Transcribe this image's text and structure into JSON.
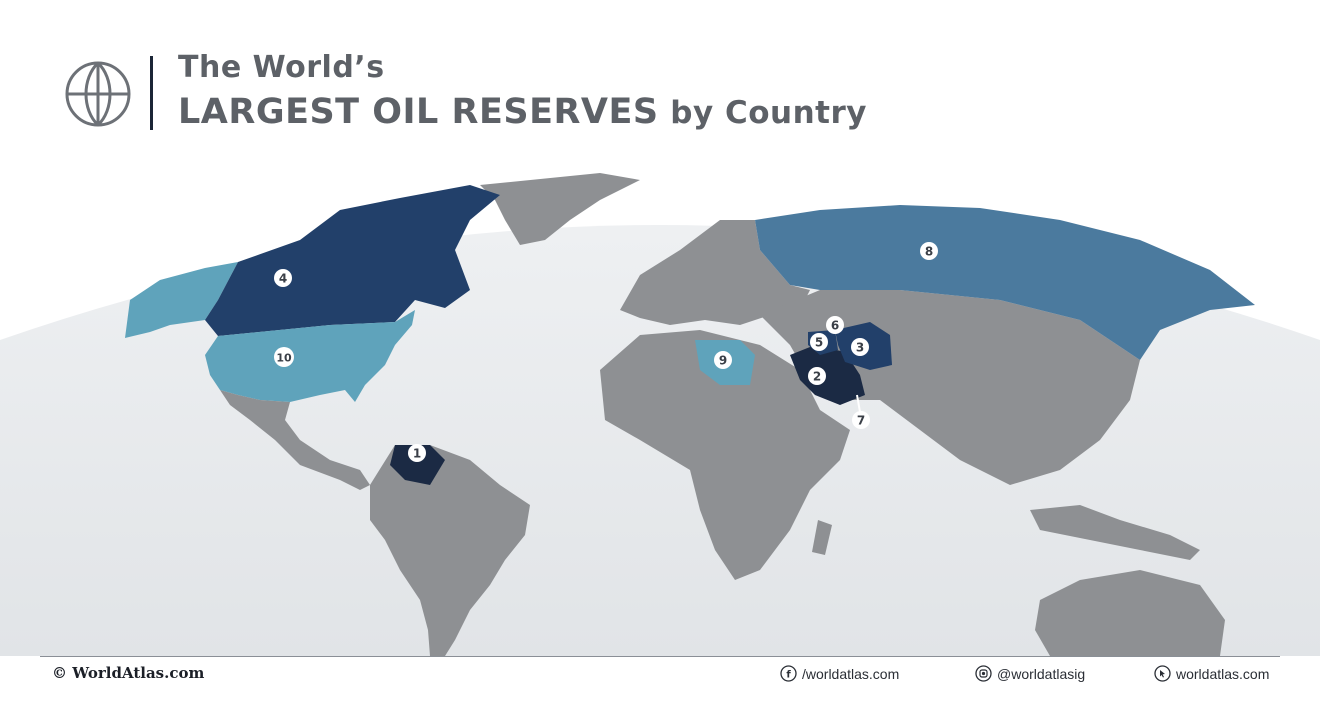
{
  "title": {
    "line1": "The World’s",
    "line2_strong": "LARGEST OIL RESERVES",
    "line2_rest": "by Country"
  },
  "logo": {
    "icon": "globe-icon"
  },
  "legend_colors": {
    "tier1": "#1b2a44",
    "tier2": "#22406a",
    "tier3": "#4b7a9e",
    "tier4": "#5fa3bb",
    "land": "#8e9093",
    "ocean": "#e9ecef"
  },
  "markers": [
    {
      "rank": "1",
      "country": "Venezuela"
    },
    {
      "rank": "2",
      "country": "Saudi Arabia"
    },
    {
      "rank": "3",
      "country": "Iran"
    },
    {
      "rank": "4",
      "country": "Canada"
    },
    {
      "rank": "5",
      "country": "Iraq"
    },
    {
      "rank": "6",
      "country": "Kuwait"
    },
    {
      "rank": "7",
      "country": "United Arab Emirates"
    },
    {
      "rank": "8",
      "country": "Russia"
    },
    {
      "rank": "9",
      "country": "Libya"
    },
    {
      "rank": "10",
      "country": "United States"
    }
  ],
  "footer": {
    "brand": "© WorldAtlas.com",
    "facebook": "/worldatlas.com",
    "instagram": "@worldatlasig",
    "website": "worldatlas.com"
  }
}
